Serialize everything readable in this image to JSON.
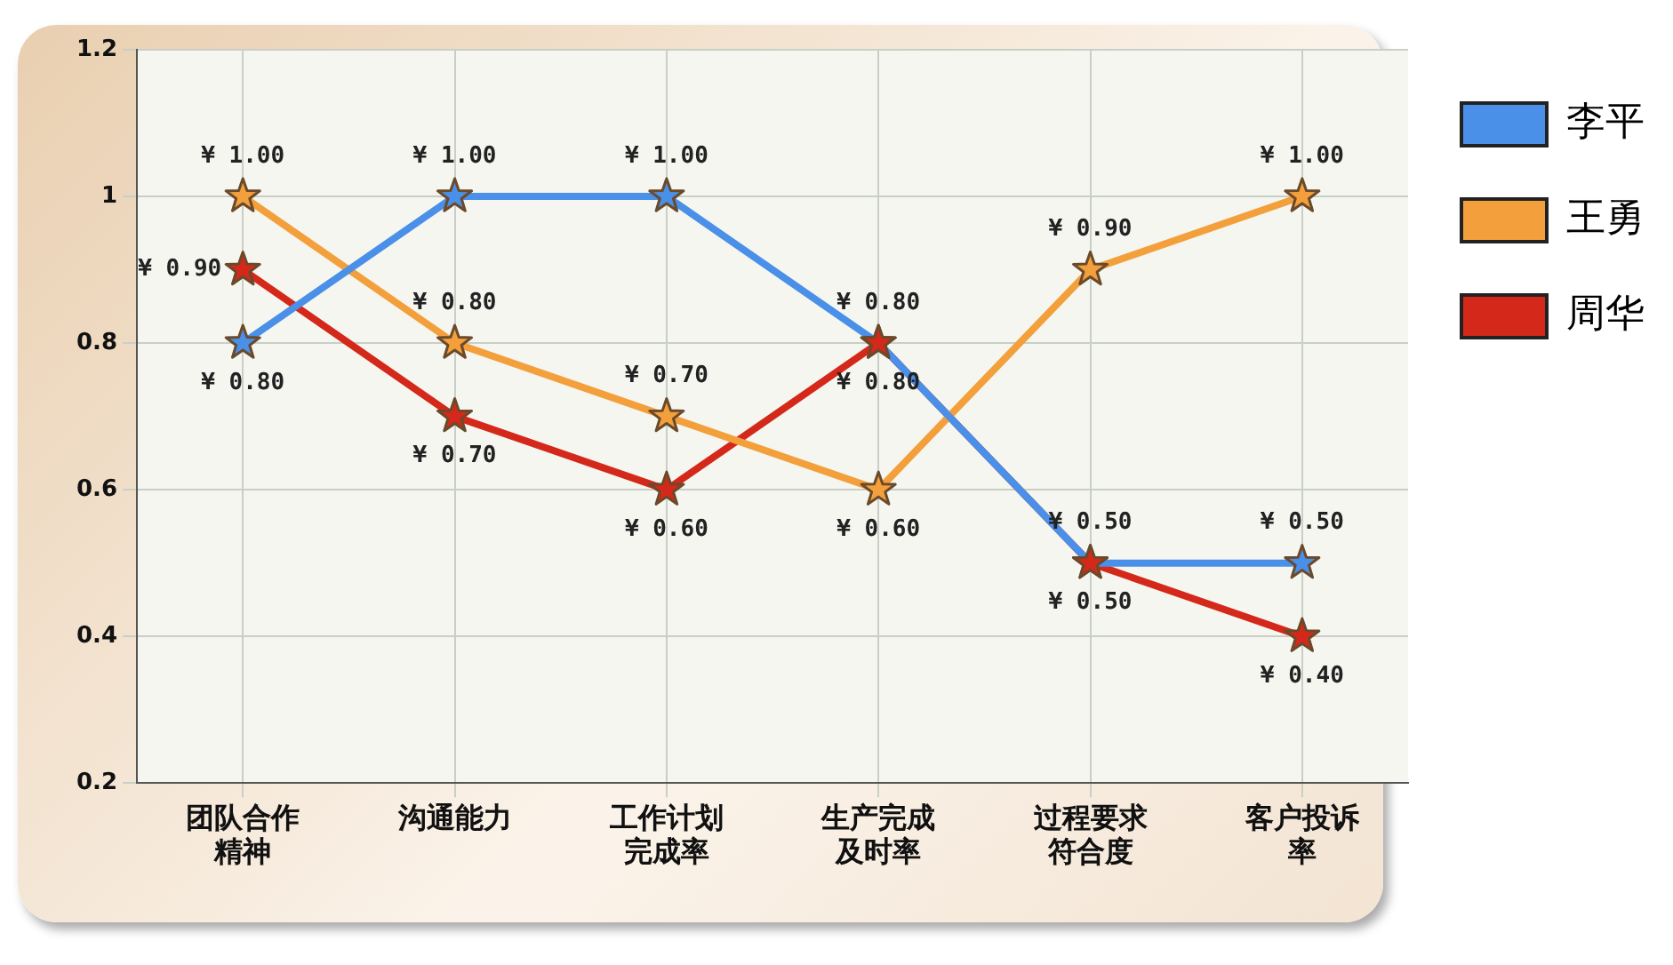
{
  "chart_data": {
    "type": "line",
    "categories": [
      "团队合作精神",
      "沟通能力",
      "工作计划完成率",
      "生产完成及时率",
      "过程要求符合度",
      "客户投诉率"
    ],
    "series": [
      {
        "name": "李平",
        "color": "#4a8fe8",
        "values": [
          0.8,
          1,
          1,
          0.8,
          0.5,
          0.5
        ],
        "value_labels": [
          "¥ 0.80",
          "¥ 1.00",
          "¥ 1.00",
          "¥ 0.80",
          "¥ 0.50",
          "¥ 0.50"
        ]
      },
      {
        "name": "王勇",
        "color": "#f3a03c",
        "values": [
          1,
          0.8,
          0.7,
          0.6,
          0.9,
          1
        ],
        "value_labels": [
          "¥ 1.00",
          "¥ 0.80",
          "¥ 0.70",
          "¥ 0.60",
          "¥ 0.90",
          "¥ 1.00"
        ]
      },
      {
        "name": "周华",
        "color": "#d4281a",
        "values": [
          0.9,
          0.7,
          0.6,
          0.8,
          0.5,
          0.4
        ],
        "value_labels": [
          "¥ 0.90",
          "¥ 0.70",
          "¥ 0.60",
          "¥ 0.80",
          "¥ 0.50",
          "¥ 0.40"
        ]
      }
    ],
    "ylim": [
      0.2,
      1.2
    ],
    "yticks": [
      0.2,
      0.4,
      0.6,
      0.8,
      1,
      1.2
    ],
    "grid": true,
    "legend": "right",
    "marker": "star",
    "line_style": "solid"
  }
}
